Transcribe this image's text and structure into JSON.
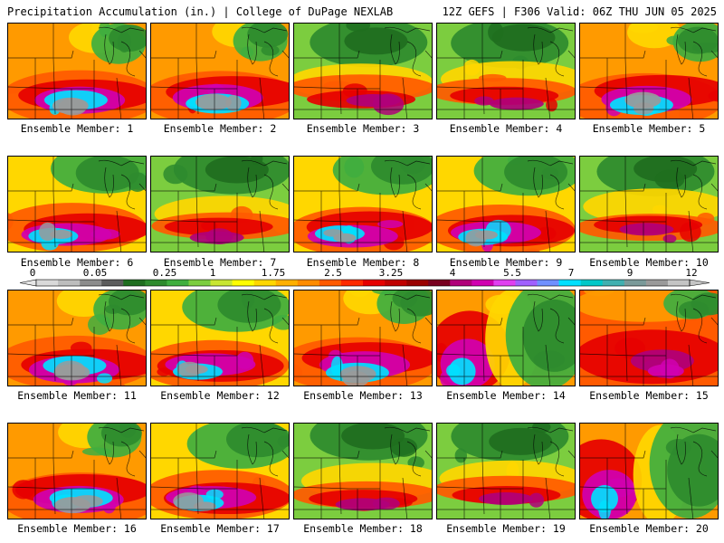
{
  "header": {
    "left_title": "Precipitation Accumulation (in.) | College of DuPage NEXLAB",
    "right_title": "12Z GEFS | F306 Valid: 06Z THU JUN 05 2025"
  },
  "member_label_prefix": "Ensemble Member: ",
  "members": [
    {
      "number": "1",
      "label": "Ensemble Member: 1",
      "pattern": "heavy-south-gray"
    },
    {
      "number": "2",
      "label": "Ensemble Member: 2",
      "pattern": "heavy-south-gray"
    },
    {
      "number": "3",
      "label": "Ensemble Member: 3",
      "pattern": "green-north-red-band"
    },
    {
      "number": "4",
      "label": "Ensemble Member: 4",
      "pattern": "green-north-red-band"
    },
    {
      "number": "5",
      "label": "Ensemble Member: 5",
      "pattern": "heavy-south-gray"
    },
    {
      "number": "6",
      "label": "Ensemble Member: 6",
      "pattern": "mixed-south-cyan"
    },
    {
      "number": "7",
      "label": "Ensemble Member: 7",
      "pattern": "green-north-red-band"
    },
    {
      "number": "8",
      "label": "Ensemble Member: 8",
      "pattern": "mixed-south-cyan"
    },
    {
      "number": "9",
      "label": "Ensemble Member: 9",
      "pattern": "mixed-south-cyan"
    },
    {
      "number": "10",
      "label": "Ensemble Member: 10",
      "pattern": "green-north-red-band"
    },
    {
      "number": "11",
      "label": "Ensemble Member: 11",
      "pattern": "heavy-south-gray"
    },
    {
      "number": "12",
      "label": "Ensemble Member: 12",
      "pattern": "mixed-south-cyan"
    },
    {
      "number": "13",
      "label": "Ensemble Member: 13",
      "pattern": "heavy-south-gray"
    },
    {
      "number": "14",
      "label": "Ensemble Member: 14",
      "pattern": "green-east-red-west"
    },
    {
      "number": "15",
      "label": "Ensemble Member: 15",
      "pattern": "red-wet"
    },
    {
      "number": "16",
      "label": "Ensemble Member: 16",
      "pattern": "heavy-south-gray"
    },
    {
      "number": "17",
      "label": "Ensemble Member: 17",
      "pattern": "mixed-south-cyan"
    },
    {
      "number": "18",
      "label": "Ensemble Member: 18",
      "pattern": "green-north-red-band"
    },
    {
      "number": "19",
      "label": "Ensemble Member: 19",
      "pattern": "green-north-red-band"
    },
    {
      "number": "20",
      "label": "Ensemble Member: 20",
      "pattern": "green-east-red-west"
    }
  ],
  "colorbar": {
    "tick_labels": [
      "0",
      "0.05",
      "0.25",
      "1",
      "1.75",
      "2.5",
      "3.25",
      "4",
      "5.5",
      "7",
      "9",
      "12"
    ],
    "colors": [
      "#d9d9d9",
      "#bdbdbd",
      "#8c8c8c",
      "#5c5c5c",
      "#1f6e1f",
      "#2e8b2e",
      "#3fae3f",
      "#7ccd3f",
      "#c8e632",
      "#ffff00",
      "#ffd700",
      "#ffb000",
      "#ff8c00",
      "#ff5a00",
      "#ff2a00",
      "#e60000",
      "#c00000",
      "#9a0000",
      "#780020",
      "#b0007a",
      "#d000b0",
      "#e040f0",
      "#a060ff",
      "#7090ff",
      "#00e0ff",
      "#00c8c8",
      "#40b0b0",
      "#7a9a9a",
      "#9a9a9a",
      "#c4c4c4"
    ]
  }
}
